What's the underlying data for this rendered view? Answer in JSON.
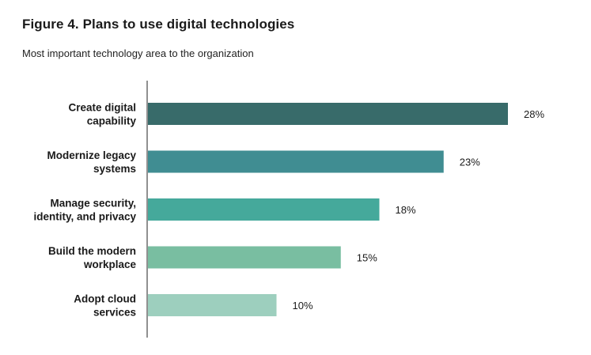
{
  "title": "Figure 4. Plans to use digital technologies",
  "subtitle": "Most important technology area to the organization",
  "chart_data": {
    "type": "bar",
    "orientation": "horizontal",
    "categories": [
      [
        "Create digital",
        "capability"
      ],
      [
        "Modernize legacy",
        "systems"
      ],
      [
        "Manage security,",
        "identity, and privacy"
      ],
      [
        "Build the modern",
        "workplace"
      ],
      [
        "Adopt cloud",
        "services"
      ]
    ],
    "values": [
      28,
      23,
      18,
      15,
      10
    ],
    "value_labels": [
      "28%",
      "23%",
      "18%",
      "15%",
      "10%"
    ],
    "unit": "%",
    "xlim": [
      0,
      28
    ],
    "grid": false,
    "legend": "none",
    "colors": [
      "#386b6a",
      "#408d92",
      "#45a99b",
      "#79bea1",
      "#9dcfbe"
    ]
  }
}
